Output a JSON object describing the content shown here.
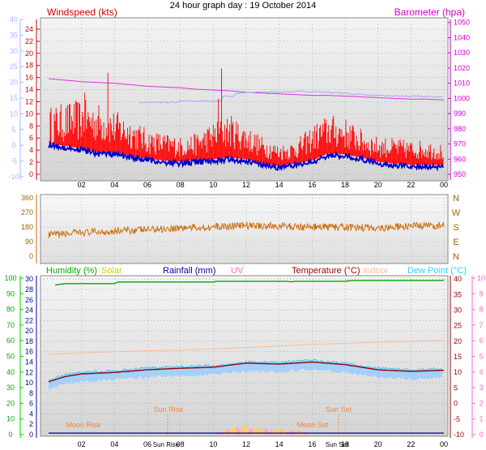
{
  "title": "24 hour graph day : 19 October 2014",
  "colors": {
    "wind_axis": "#aab4ff",
    "wind_label": "#cc0000",
    "wind_gust": "#ff0000",
    "wind_avg": "#0000cc",
    "baro": "#cc00cc",
    "baro_line": "#dd33dd",
    "baro_secondary": "#99aaff",
    "wind_dir": "#cc6600",
    "dir_axis_text": "#996600",
    "humidity": "#00aa00",
    "solar": "#cccc00",
    "rainfall": "#000099",
    "uv": "#ff66cc",
    "temperature": "#990000",
    "indoor": "#ffbb99",
    "dewpoint": "#33ccff",
    "temp_band": "#99ccff",
    "sun_moon": "#ee8844",
    "green_axis": "#00cc00",
    "pink_axis": "#ff66cc"
  },
  "chart_data": [
    {
      "type": "line",
      "name": "wind-barometer",
      "labels": {
        "left": "Windspeed (kts)",
        "right": "Barometer (hpa)"
      },
      "x_ticks": [
        "02",
        "04",
        "06",
        "08",
        "10",
        "12",
        "14",
        "16",
        "18",
        "20",
        "22",
        "00"
      ],
      "y_outer_ticks": [
        "-10",
        "-5",
        "0",
        "5",
        "10",
        "15",
        "20",
        "25",
        "30",
        "35",
        "40"
      ],
      "y_left_ticks": [
        "0",
        "2",
        "4",
        "6",
        "8",
        "10",
        "12",
        "14",
        "16",
        "18",
        "20",
        "22",
        "24"
      ],
      "y_right_ticks": [
        "950",
        "960",
        "970",
        "980",
        "990",
        "1000",
        "1010",
        "1020",
        "1030",
        "1040",
        "1050"
      ],
      "ylim_left": [
        0,
        24.8
      ],
      "ylim_right": [
        950,
        1052
      ],
      "x_range_hours": [
        0,
        24
      ],
      "series": [
        {
          "values": [
            [
              0,
              1013
            ],
            [
              1,
              1012
            ],
            [
              2,
              1011
            ],
            [
              3,
              1010.5
            ],
            [
              4,
              1010
            ],
            [
              5,
              1009
            ],
            [
              6,
              1008
            ],
            [
              7,
              1007.5
            ],
            [
              8,
              1007
            ],
            [
              9,
              1006
            ],
            [
              10,
              1005.5
            ],
            [
              11,
              1005
            ],
            [
              12,
              1004
            ],
            [
              13,
              1003.5
            ],
            [
              14,
              1003
            ],
            [
              15,
              1002.5
            ],
            [
              16,
              1002
            ],
            [
              17,
              1002
            ],
            [
              18,
              1001.5
            ],
            [
              19,
              1001
            ],
            [
              20,
              1000.5
            ],
            [
              21,
              1000
            ],
            [
              22,
              999.5
            ],
            [
              23,
              999.5
            ],
            [
              24,
              999
            ]
          ]
        },
        {
          "values": [
            [
              0,
              4.8
            ],
            [
              1,
              4.4
            ],
            [
              2,
              4.0
            ],
            [
              3,
              3.4
            ],
            [
              4,
              3.3
            ],
            [
              5,
              2.8
            ],
            [
              6,
              2.3
            ],
            [
              7,
              2.0
            ],
            [
              8,
              1.8
            ],
            [
              9,
              2.0
            ],
            [
              10,
              2.2
            ],
            [
              11,
              2.5
            ],
            [
              12,
              2.2
            ],
            [
              13,
              1.5
            ],
            [
              14,
              1.1
            ],
            [
              15,
              1.5
            ],
            [
              16,
              2.0
            ],
            [
              17,
              3.2
            ],
            [
              18,
              3.0
            ],
            [
              19,
              2.5
            ],
            [
              20,
              1.8
            ],
            [
              21,
              1.5
            ],
            [
              22,
              1.3
            ],
            [
              23,
              1.3
            ],
            [
              24,
              1.2
            ]
          ]
        },
        {
          "values": [
            [
              0,
              9
            ],
            [
              1,
              9.5
            ],
            [
              2,
              10
            ],
            [
              3,
              9.5
            ],
            [
              4,
              8.5
            ],
            [
              5,
              7.5
            ],
            [
              6,
              6
            ],
            [
              7,
              5.5
            ],
            [
              8,
              5
            ],
            [
              9,
              5.5
            ],
            [
              10,
              7
            ],
            [
              11,
              8
            ],
            [
              12,
              6.5
            ],
            [
              13,
              5
            ],
            [
              14,
              4
            ],
            [
              15,
              4.5
            ],
            [
              16,
              6.5
            ],
            [
              17,
              8
            ],
            [
              18,
              7.5
            ],
            [
              19,
              6
            ],
            [
              20,
              5
            ],
            [
              21,
              4.8
            ],
            [
              22,
              4.5
            ],
            [
              23,
              4.5
            ],
            [
              24,
              4
            ]
          ]
        }
      ]
    },
    {
      "type": "line",
      "name": "wind-direction",
      "y_left_ticks": [
        "0",
        "90",
        "180",
        "270",
        "360"
      ],
      "y_right_ticks": [
        "N",
        "E",
        "S",
        "W",
        "N"
      ],
      "ylim": [
        0,
        360
      ],
      "series": [
        {
          "values": [
            [
              0,
              130
            ],
            [
              2,
              145
            ],
            [
              4,
              155
            ],
            [
              6,
              165
            ],
            [
              8,
              175
            ],
            [
              10,
              180
            ],
            [
              12,
              190
            ],
            [
              14,
              185
            ],
            [
              16,
              180
            ],
            [
              18,
              178
            ],
            [
              20,
              175
            ],
            [
              22,
              185
            ],
            [
              24,
              190
            ]
          ]
        }
      ]
    },
    {
      "type": "line",
      "name": "humidity-temperature",
      "labels": {
        "humidity": "Humidity (%)",
        "solar": "Solar",
        "rainfall": "Rainfall (mm)",
        "uv": "UV",
        "temperature": "Temperature (°C)",
        "indoor": "Indoor",
        "dewpoint": "Dew Point (°C)"
      },
      "x_ticks": [
        "02",
        "04",
        "06",
        "08",
        "10",
        "12",
        "14",
        "16",
        "18",
        "20",
        "22",
        "00"
      ],
      "y_green_ticks": [
        "0",
        "10",
        "20",
        "30",
        "40",
        "50",
        "60",
        "70",
        "80",
        "90",
        "100"
      ],
      "y_left_ticks": [
        "0",
        "2",
        "4",
        "6",
        "8",
        "10",
        "12",
        "14",
        "16",
        "18",
        "20",
        "22",
        "24",
        "26",
        "28",
        "30"
      ],
      "y_right_ticks": [
        "-10",
        "-5",
        "0",
        "5",
        "10",
        "15",
        "20",
        "25",
        "30",
        "35",
        "40"
      ],
      "y_pink_ticks": [
        "0",
        "1",
        "2",
        "3",
        "4",
        "5",
        "6",
        "7",
        "8",
        "9",
        "10"
      ],
      "ylim_left": [
        0,
        30.5
      ],
      "ylim_right": [
        -10,
        40.8
      ],
      "annotations": [
        {
          "text": "Moon Rise",
          "x_time": "Moon Rise"
        },
        {
          "text": "Sun Rise",
          "x_time": "Sun Rise"
        },
        {
          "text": "Moon Set",
          "x_time": "Moon Set"
        },
        {
          "text": "Sun Set",
          "x_time": "Sun Set"
        }
      ],
      "series": [
        {
          "values": [
            [
              0,
              95
            ],
            [
              1,
              96.5
            ],
            [
              4,
              96.5
            ],
            [
              4.2,
              97.5
            ],
            [
              10,
              97.5
            ],
            [
              10.2,
              98
            ],
            [
              14.5,
              98
            ],
            [
              14.7,
              97.5
            ],
            [
              15,
              98
            ],
            [
              18,
              98
            ],
            [
              18.5,
              98.5
            ],
            [
              24,
              98.5
            ]
          ]
        },
        {
          "values": [
            [
              0,
              10.2
            ],
            [
              1,
              11.2
            ],
            [
              2,
              11.7
            ],
            [
              4,
              12
            ],
            [
              6,
              12.5
            ],
            [
              8,
              12.8
            ],
            [
              10,
              13
            ],
            [
              12,
              13.8
            ],
            [
              14,
              13.6
            ],
            [
              16,
              14
            ],
            [
              18,
              13.5
            ],
            [
              20,
              12.5
            ],
            [
              22,
              12.2
            ],
            [
              24,
              12.4
            ]
          ]
        },
        {
          "values": [
            [
              0,
              10
            ],
            [
              1,
              11
            ],
            [
              2,
              11.5
            ],
            [
              4,
              11.8
            ],
            [
              6,
              12.3
            ],
            [
              8,
              12.6
            ],
            [
              10,
              12.8
            ],
            [
              12,
              13.5
            ],
            [
              14,
              13.4
            ],
            [
              16,
              13.8
            ],
            [
              18,
              13.2
            ],
            [
              20,
              12.3
            ],
            [
              22,
              12
            ],
            [
              24,
              12.2
            ]
          ]
        },
        {
          "values": [
            [
              0,
              15.5
            ],
            [
              4,
              16
            ],
            [
              8,
              16.3
            ],
            [
              12,
              16.8
            ],
            [
              16,
              17.4
            ],
            [
              20,
              17.8
            ],
            [
              24,
              18.2
            ]
          ]
        },
        {
          "values": [
            [
              10,
              0.3
            ],
            [
              10.5,
              0.8
            ],
            [
              11,
              1.1
            ],
            [
              11.5,
              1.4
            ],
            [
              12,
              1.8
            ],
            [
              12.5,
              1.5
            ],
            [
              13,
              1.1
            ],
            [
              13.5,
              1
            ],
            [
              14,
              1.2
            ],
            [
              14.5,
              0.7
            ],
            [
              15,
              0.9
            ],
            [
              15.5,
              0.5
            ],
            [
              16,
              0.3
            ]
          ]
        }
      ]
    }
  ]
}
